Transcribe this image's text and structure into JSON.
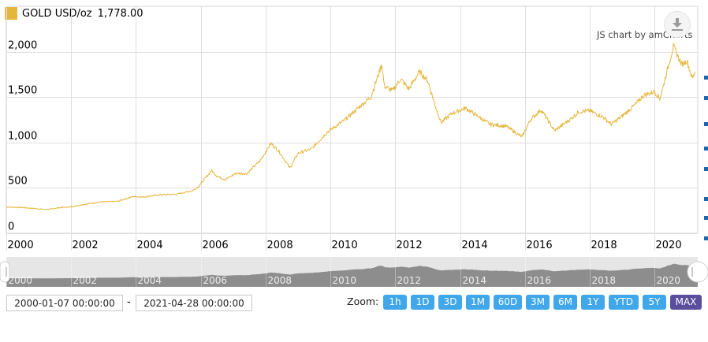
{
  "legend": {
    "label": "GOLD USD/oz",
    "value": "1,778.00",
    "color": "#e5b63c"
  },
  "credit": "JS chart by amCharts",
  "export_icon": "download-icon",
  "chart_data": {
    "type": "line",
    "series": [
      {
        "name": "GOLD USD/oz",
        "color": "#e5b63c",
        "points": [
          [
            "2000-01",
            289
          ],
          [
            "2000-06",
            285
          ],
          [
            "2000-12",
            272
          ],
          [
            "2001-04",
            260
          ],
          [
            "2001-09",
            283
          ],
          [
            "2002-01",
            290
          ],
          [
            "2002-06",
            320
          ],
          [
            "2002-12",
            345
          ],
          [
            "2003-06",
            350
          ],
          [
            "2003-12",
            405
          ],
          [
            "2004-04",
            400
          ],
          [
            "2004-10",
            425
          ],
          [
            "2005-04",
            430
          ],
          [
            "2005-10",
            470
          ],
          [
            "2005-12",
            510
          ],
          [
            "2006-05",
            690
          ],
          [
            "2006-07",
            630
          ],
          [
            "2006-10",
            590
          ],
          [
            "2007-02",
            660
          ],
          [
            "2007-06",
            655
          ],
          [
            "2007-11",
            800
          ],
          [
            "2008-03",
            990
          ],
          [
            "2008-06",
            900
          ],
          [
            "2008-10",
            720
          ],
          [
            "2009-01",
            880
          ],
          [
            "2009-06",
            930
          ],
          [
            "2009-12",
            1120
          ],
          [
            "2010-06",
            1240
          ],
          [
            "2010-12",
            1400
          ],
          [
            "2011-04",
            1500
          ],
          [
            "2011-08",
            1860
          ],
          [
            "2011-09",
            1620
          ],
          [
            "2011-12",
            1570
          ],
          [
            "2012-03",
            1700
          ],
          [
            "2012-06",
            1590
          ],
          [
            "2012-10",
            1780
          ],
          [
            "2013-01",
            1680
          ],
          [
            "2013-04",
            1390
          ],
          [
            "2013-06",
            1220
          ],
          [
            "2013-10",
            1320
          ],
          [
            "2014-03",
            1380
          ],
          [
            "2014-06",
            1320
          ],
          [
            "2014-12",
            1200
          ],
          [
            "2015-06",
            1180
          ],
          [
            "2015-12",
            1060
          ],
          [
            "2016-03",
            1250
          ],
          [
            "2016-07",
            1360
          ],
          [
            "2016-12",
            1130
          ],
          [
            "2017-06",
            1260
          ],
          [
            "2017-09",
            1340
          ],
          [
            "2018-01",
            1350
          ],
          [
            "2018-06",
            1280
          ],
          [
            "2018-09",
            1200
          ],
          [
            "2019-01",
            1290
          ],
          [
            "2019-06",
            1420
          ],
          [
            "2019-09",
            1520
          ],
          [
            "2020-01",
            1560
          ],
          [
            "2020-03",
            1480
          ],
          [
            "2020-08",
            2060
          ],
          [
            "2020-11",
            1860
          ],
          [
            "2021-01",
            1900
          ],
          [
            "2021-03",
            1700
          ],
          [
            "2021-04",
            1778
          ]
        ]
      }
    ],
    "x_ticks": [
      "2000",
      "2002",
      "2004",
      "2006",
      "2008",
      "2010",
      "2012",
      "2014",
      "2016",
      "2018",
      "2020"
    ],
    "y_ticks": [
      {
        "value": 0,
        "label": "0"
      },
      {
        "value": 500,
        "label": "500"
      },
      {
        "value": 1000,
        "label": "1,000"
      },
      {
        "value": 1500,
        "label": "1,500"
      },
      {
        "value": 2000,
        "label": "2,000"
      }
    ],
    "xlim": [
      "2000-01",
      "2021-04"
    ],
    "ylim": [
      0,
      2500
    ],
    "grid": true,
    "xlabel": "",
    "ylabel": ""
  },
  "navigator": {
    "labels": [
      "2000",
      "2002",
      "2004",
      "2006",
      "2008",
      "2010",
      "2012",
      "2014",
      "2016",
      "2018",
      "2020"
    ]
  },
  "range": {
    "from": "2000-01-07 00:00:00",
    "separator": "-",
    "to": "2021-04-28 00:00:00"
  },
  "zoom": {
    "label": "Zoom:",
    "buttons": [
      "1h",
      "1D",
      "3D",
      "1M",
      "60D",
      "3M",
      "6M",
      "1Y",
      "YTD",
      "5Y",
      "MAX"
    ],
    "active": "MAX"
  }
}
